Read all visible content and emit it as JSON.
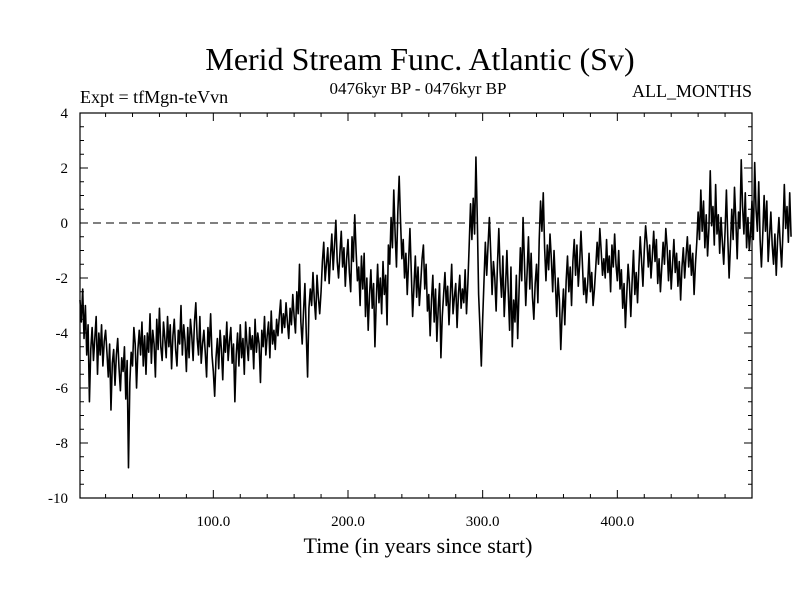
{
  "chart_data": {
    "type": "line",
    "title": "Merid Stream Func. Atlantic (Sv)",
    "subtitle_left": "Expt = tfMgn-teVvn",
    "subtitle_center": "0476kyr BP - 0476kyr BP",
    "subtitle_right": "ALL_MONTHS",
    "xlabel": "Time (in years since start)",
    "ylabel": "",
    "xlim": [
      1,
      500
    ],
    "ylim": [
      -10,
      4
    ],
    "x_ticks": [
      100,
      200,
      300,
      400
    ],
    "x_tick_labels": [
      "100.0",
      "200.0",
      "300.0",
      "400.0"
    ],
    "y_ticks": [
      -10,
      -8,
      -6,
      -4,
      -2,
      0,
      2,
      4
    ],
    "y_tick_labels": [
      "-10",
      "-8",
      "-6",
      "-4",
      "-2",
      "0",
      "2",
      "4"
    ],
    "reference_line": {
      "y": 0,
      "style": "dashed"
    },
    "grid": false,
    "line_color": "#000000",
    "series": [
      {
        "x_start": 1,
        "x_step": 1,
        "values": [
          -2.8,
          -3.6,
          -2.4,
          -4.2,
          -3.0,
          -4.8,
          -3.7,
          -6.5,
          -4.6,
          -3.8,
          -5.0,
          -4.2,
          -3.4,
          -5.5,
          -4.0,
          -4.8,
          -3.7,
          -5.2,
          -4.3,
          -3.9,
          -4.7,
          -5.6,
          -4.4,
          -6.8,
          -5.1,
          -4.6,
          -5.9,
          -4.8,
          -4.2,
          -5.3,
          -6.1,
          -4.9,
          -5.4,
          -4.5,
          -6.4,
          -5.0,
          -8.9,
          -5.8,
          -4.7,
          -5.2,
          -3.8,
          -4.4,
          -6.0,
          -4.6,
          -3.9,
          -4.8,
          -3.6,
          -5.2,
          -4.1,
          -5.5,
          -4.0,
          -4.7,
          -3.3,
          -5.1,
          -3.9,
          -4.4,
          -5.6,
          -3.5,
          -4.6,
          -3.1,
          -4.5,
          -5.0,
          -3.6,
          -4.2,
          -4.9,
          -3.4,
          -4.5,
          -3.7,
          -5.3,
          -4.1,
          -3.5,
          -4.6,
          -5.2,
          -3.9,
          -4.4,
          -3.0,
          -4.8,
          -3.7,
          -4.3,
          -5.4,
          -3.8,
          -4.9,
          -3.5,
          -4.1,
          -5.0,
          -3.6,
          -2.9,
          -4.2,
          -4.8,
          -3.4,
          -5.1,
          -4.4,
          -3.9,
          -4.7,
          -5.6,
          -3.8,
          -4.5,
          -3.3,
          -4.8,
          -5.4,
          -6.3,
          -4.9,
          -4.2,
          -5.3,
          -3.9,
          -4.6,
          -5.7,
          -4.1,
          -4.7,
          -3.6,
          -5.0,
          -4.3,
          -3.8,
          -5.1,
          -4.4,
          -6.5,
          -4.8,
          -4.0,
          -5.2,
          -3.7,
          -4.9,
          -4.2,
          -5.5,
          -3.6,
          -4.4,
          -5.0,
          -3.8,
          -4.6,
          -4.1,
          -5.3,
          -3.5,
          -4.7,
          -4.0,
          -4.4,
          -5.8,
          -3.9,
          -4.5,
          -3.4,
          -4.8,
          -4.1,
          -3.6,
          -4.9,
          -3.2,
          -4.4,
          -3.9,
          -4.6,
          -3.5,
          -4.1,
          -3.4,
          -2.8,
          -4.0,
          -3.3,
          -3.8,
          -2.9,
          -3.6,
          -4.2,
          -3.1,
          -3.7,
          -2.6,
          -3.4,
          -4.0,
          -2.5,
          -3.3,
          -1.5,
          -3.6,
          -4.4,
          -3.2,
          -2.2,
          -4.0,
          -5.6,
          -3.1,
          -2.4,
          -3.0,
          -1.8,
          -2.8,
          -3.5,
          -1.9,
          -2.7,
          -3.3,
          -2.5,
          -1.4,
          -0.7,
          -2.1,
          -1.5,
          -0.9,
          -2.2,
          -1.2,
          -0.4,
          -1.7,
          -0.8,
          0.1,
          -1.4,
          -2.0,
          -1.1,
          -0.3,
          -1.6,
          -0.9,
          -2.3,
          -1.3,
          -0.6,
          -1.8,
          -2.5,
          -0.5,
          -1.4,
          0.3,
          -1.0,
          -2.1,
          -1.6,
          -3.0,
          -1.2,
          -2.4,
          -1.1,
          -3.4,
          -2.0,
          -3.9,
          -2.6,
          -1.7,
          -3.1,
          -2.2,
          -4.5,
          -2.8,
          -1.5,
          -2.9,
          -2.0,
          -3.3,
          -1.4,
          -2.6,
          -1.9,
          -3.7,
          -0.8,
          -1.5,
          0.2,
          -0.9,
          1.2,
          -0.4,
          -1.6,
          0.4,
          1.7,
          0.1,
          -1.3,
          -0.6,
          -2.0,
          -1.1,
          -2.6,
          -1.4,
          -0.2,
          -1.8,
          -3.4,
          -2.3,
          -1.2,
          -2.7,
          -1.6,
          -3.0,
          -2.2,
          -1.3,
          -0.8,
          -2.4,
          -1.5,
          -3.2,
          -2.6,
          -4.1,
          -2.8,
          -1.9,
          -3.6,
          -2.4,
          -4.3,
          -3.1,
          -2.2,
          -4.9,
          -3.4,
          -2.6,
          -1.8,
          -3.0,
          -2.3,
          -3.7,
          -2.6,
          -1.5,
          -3.3,
          -2.7,
          -2.2,
          -3.8,
          -2.6,
          -1.9,
          -3.1,
          -2.4,
          -2.9,
          -1.7,
          -3.3,
          -2.2,
          -0.8,
          0.7,
          -0.6,
          0.9,
          -0.4,
          2.4,
          0.2,
          -2.6,
          -3.8,
          -5.2,
          -3.5,
          -2.1,
          -0.7,
          -1.9,
          -0.8,
          0.2,
          -1.1,
          -2.6,
          -1.4,
          -2.0,
          -3.2,
          -1.5,
          -0.2,
          -1.8,
          -2.7,
          -1.2,
          -3.4,
          -2.3,
          -1.0,
          -2.5,
          -3.9,
          -1.6,
          -4.5,
          -2.8,
          -3.6,
          -1.9,
          -4.2,
          -2.5,
          -0.9,
          -2.1,
          0.2,
          -1.4,
          -3.0,
          -1.8,
          -0.5,
          -2.4,
          -1.1,
          -2.7,
          -3.5,
          -2.2,
          -1.5,
          -2.9,
          -0.6,
          0.8,
          -0.3,
          1.1,
          -0.9,
          -2.1,
          -0.8,
          -1.7,
          -0.4,
          -1.3,
          -2.5,
          -1.0,
          -2.2,
          -3.4,
          -2.0,
          -2.8,
          -4.6,
          -3.3,
          -2.4,
          -3.7,
          -2.1,
          -1.2,
          -2.5,
          -1.6,
          -3.0,
          -1.4,
          -0.6,
          -1.9,
          -0.8,
          -2.3,
          -1.5,
          -0.3,
          -1.4,
          -2.6,
          -2.0,
          -2.9,
          -2.2,
          -1.1,
          -2.5,
          -1.8,
          -3.0,
          -2.4,
          -1.6,
          -0.7,
          -1.5,
          -0.2,
          -1.0,
          -1.9,
          -1.3,
          -2.0,
          -0.6,
          -1.8,
          -1.2,
          -2.5,
          -0.8,
          -1.6,
          -0.4,
          -1.5,
          -2.1,
          -1.0,
          -2.4,
          -1.7,
          -3.1,
          -2.2,
          -3.8,
          -2.6,
          -1.5,
          -2.2,
          -3.4,
          -2.1,
          -1.0,
          -2.6,
          -1.8,
          -2.9,
          -1.6,
          -0.5,
          -1.4,
          -2.3,
          -1.0,
          -0.1,
          -0.7,
          -1.6,
          -0.8,
          -2.0,
          -1.2,
          -0.3,
          -1.4,
          -0.6,
          -2.2,
          -1.3,
          -2.5,
          -1.6,
          -0.7,
          -1.5,
          -0.2,
          -0.9,
          -2.1,
          -1.0,
          -2.4,
          -1.5,
          -0.6,
          -1.8,
          -1.1,
          -2.3,
          -1.4,
          -2.8,
          -1.6,
          -0.9,
          -2.0,
          -1.2,
          -0.5,
          -1.6,
          -0.8,
          -1.9,
          -1.1,
          -2.6,
          -1.5,
          -0.7,
          0.4,
          -0.6,
          1.2,
          -0.3,
          0.8,
          -0.9,
          0.3,
          -1.2,
          -0.2,
          1.9,
          -0.1,
          0.6,
          -0.8,
          1.4,
          -0.4,
          0.3,
          -1.1,
          0.2,
          -0.7,
          -1.5,
          -0.3,
          1.2,
          -0.5,
          -2.0,
          -0.8,
          0.5,
          -0.6,
          1.3,
          0.1,
          -1.3,
          0.4,
          -0.2,
          2.3,
          0.6,
          -0.4,
          1.1,
          -0.9,
          0.2,
          -1.0,
          -0.3,
          0.8,
          -0.6,
          2.2,
          0.5,
          -0.3,
          1.5,
          -0.6,
          -1.6,
          -0.4,
          1.0,
          -0.3,
          0.8,
          -1.4,
          -0.5,
          0.4,
          -0.8,
          -1.5,
          -0.4,
          -1.9,
          -0.6,
          0.2,
          -0.8,
          -1.6,
          -0.3,
          1.4,
          -0.2,
          0.6,
          -0.7,
          1.1,
          -0.5
        ]
      }
    ]
  }
}
